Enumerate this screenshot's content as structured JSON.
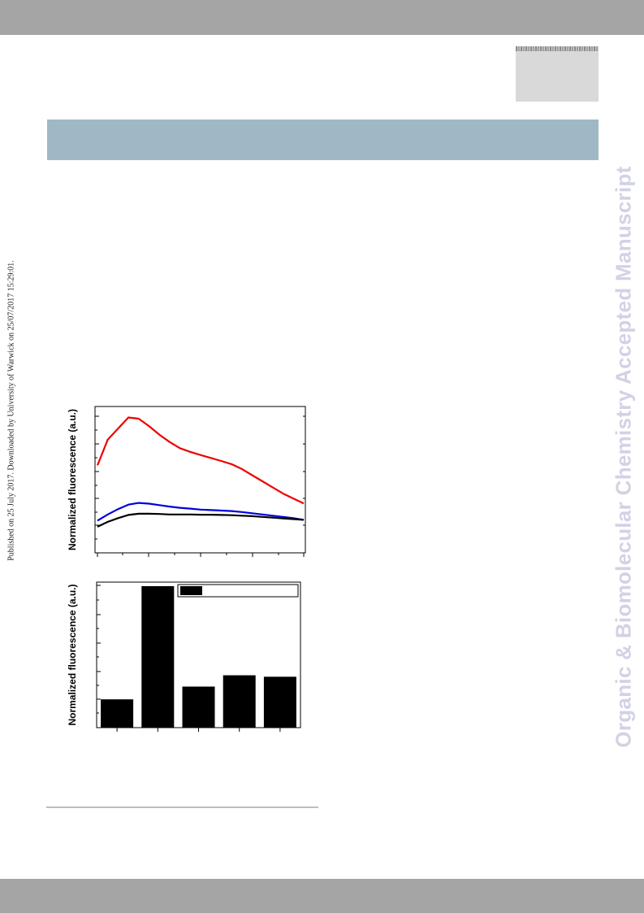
{
  "journal_banner": "Organic & Biomolecular Chemistry Accepted Manuscript",
  "published_note": "Published on 25 July 2017. Downloaded by University of Warwick on 25/07/2017 15:29:01.",
  "colors": {
    "top_bar": "#a5a5a5",
    "header_band": "#9fb8c6",
    "banner_text": "#d2d2e6",
    "series_red": "#ee0000",
    "series_blue": "#0000dd",
    "series_black": "#000000"
  },
  "chart_data": [
    {
      "type": "line",
      "ylabel": "Normalized fluorescence (a.u.)",
      "xlabel": "",
      "x": [
        0,
        2,
        4,
        6,
        8,
        10,
        12,
        14,
        16,
        18,
        20,
        22,
        24,
        26,
        28,
        30,
        32,
        34,
        36,
        38,
        40
      ],
      "xlim": [
        0,
        40
      ],
      "ylim": [
        0,
        5
      ],
      "grid": false,
      "series": [
        {
          "color": "#ee0000",
          "values": [
            3.0,
            4.05,
            4.5,
            4.95,
            4.9,
            4.6,
            4.25,
            3.95,
            3.7,
            3.55,
            3.42,
            3.3,
            3.18,
            3.05,
            2.85,
            2.6,
            2.35,
            2.1,
            1.85,
            1.65,
            1.45
          ]
        },
        {
          "color": "#0000dd",
          "values": [
            0.75,
            1.0,
            1.22,
            1.4,
            1.47,
            1.44,
            1.38,
            1.32,
            1.27,
            1.24,
            1.2,
            1.18,
            1.16,
            1.14,
            1.1,
            1.05,
            1.0,
            0.95,
            0.9,
            0.85,
            0.78
          ]
        },
        {
          "color": "#000000",
          "values": [
            0.5,
            0.7,
            0.85,
            0.98,
            1.03,
            1.03,
            1.02,
            1.0,
            1.0,
            1.0,
            0.99,
            0.99,
            0.98,
            0.97,
            0.95,
            0.93,
            0.9,
            0.87,
            0.84,
            0.81,
            0.78
          ]
        }
      ]
    },
    {
      "type": "bar",
      "ylabel": "Normalized fluorescence (a.u.)",
      "xlabel": "",
      "categories": [
        "",
        "",
        "",
        "",
        ""
      ],
      "values": [
        1.0,
        5.0,
        1.45,
        1.85,
        1.8
      ],
      "ylim": [
        0,
        5.1
      ],
      "grid": false,
      "legend": "top-right"
    }
  ]
}
